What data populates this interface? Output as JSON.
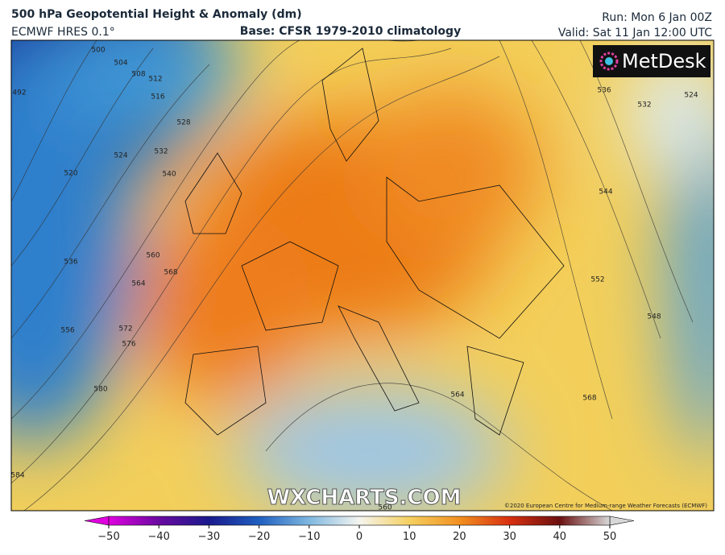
{
  "header": {
    "title": "500 hPa Geopotential Height & Anomaly (dm)",
    "model": "ECMWF HRES 0.1°",
    "base": "Base: CFSR 1979-2010 climatology",
    "run": "Run: Mon 6 Jan 00Z",
    "valid": "Valid: Sat 11 Jan 12:00 UTC"
  },
  "logo": "MetDesk",
  "watermark": "WXCHARTS.COM",
  "copyright": "©2020 European Centre for Medium-range Weather Forecasts (ECMWF)",
  "contour_labels": [
    "492",
    "500",
    "504",
    "508",
    "512",
    "516",
    "528",
    "532",
    "524",
    "520",
    "540",
    "536",
    "560",
    "564",
    "568",
    "556",
    "572",
    "576",
    "580",
    "584",
    "560",
    "564",
    "568",
    "548",
    "552",
    "544",
    "536",
    "532",
    "524"
  ],
  "colorbar": {
    "lim": [
      -50,
      50
    ],
    "ticks": [
      {
        "value": -50,
        "label": "−50"
      },
      {
        "value": -40,
        "label": "−40"
      },
      {
        "value": -30,
        "label": "−30"
      },
      {
        "value": -20,
        "label": "−20"
      },
      {
        "value": -10,
        "label": "−10"
      },
      0,
      10,
      20,
      30,
      40,
      50
    ],
    "colors": [
      "#e000e0",
      "#6a0aa0",
      "#1a1a8c",
      "#1f5fc0",
      "#7fb8e0",
      "#f5f5f0",
      "#f5d060",
      "#f29020",
      "#d83010",
      "#6a1010",
      "#d8d8d8"
    ]
  }
}
